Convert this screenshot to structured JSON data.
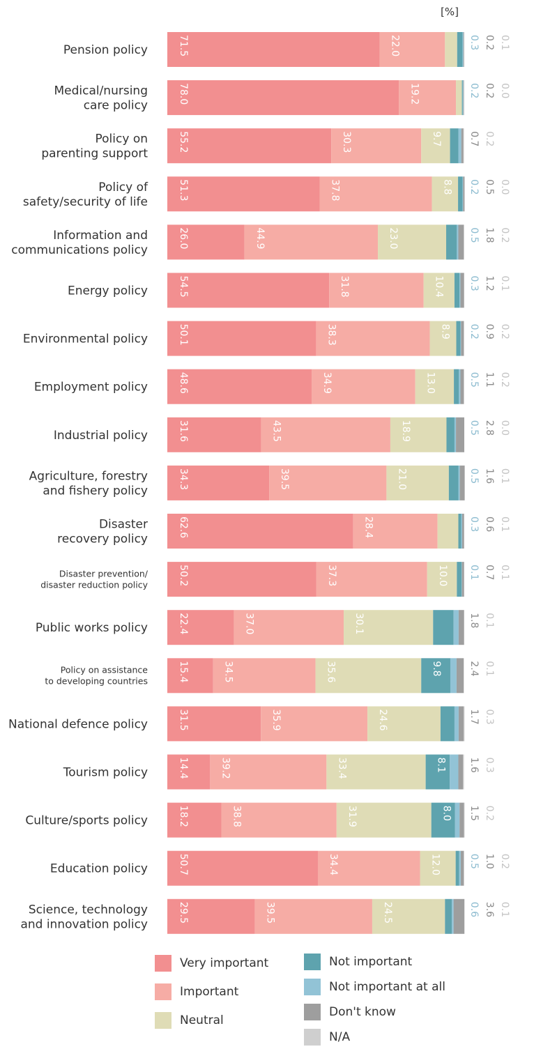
{
  "unit_label": "[%]",
  "colors": {
    "very_important": "#f28f90",
    "important": "#f6aca5",
    "neutral": "#dfdcb6",
    "not_important": "#5ea3ae",
    "not_important_at_all": "#92c3d6",
    "dont_know": "#9e9e9e",
    "na": "#cfcfcf"
  },
  "chart_data": {
    "type": "bar",
    "orientation": "horizontal",
    "stacked": true,
    "unit": "[%]",
    "categories": [
      [
        "Pension policy"
      ],
      [
        "Medical/nursing",
        "care policy"
      ],
      [
        "Policy on",
        "parenting support"
      ],
      [
        "Policy of",
        "safety/security of life"
      ],
      [
        "Information and",
        "communications policy"
      ],
      [
        "Energy policy"
      ],
      [
        "Environmental policy"
      ],
      [
        "Employment policy"
      ],
      [
        "Industrial policy"
      ],
      [
        "Agriculture, forestry",
        "and fishery policy"
      ],
      [
        "Disaster",
        "recovery policy"
      ],
      [
        "Disaster prevention/",
        "disaster reduction policy"
      ],
      [
        "Public works policy"
      ],
      [
        "Policy on assistance",
        "to developing countries"
      ],
      [
        "National defence policy"
      ],
      [
        "Tourism policy"
      ],
      [
        "Culture/sports policy"
      ],
      [
        "Education policy"
      ],
      [
        "Science, technology",
        "and innovation policy"
      ]
    ],
    "series": [
      {
        "name": "Very important",
        "color_key": "very_important",
        "values": [
          71.5,
          78.0,
          55.2,
          51.3,
          26.0,
          54.5,
          50.1,
          48.6,
          31.6,
          34.3,
          62.6,
          50.2,
          22.4,
          15.4,
          31.5,
          14.4,
          18.2,
          50.7,
          29.5
        ]
      },
      {
        "name": "Important",
        "color_key": "important",
        "values": [
          22.0,
          19.2,
          30.3,
          37.8,
          44.9,
          31.8,
          38.3,
          34.9,
          43.5,
          39.5,
          28.4,
          37.3,
          37.0,
          34.5,
          35.9,
          39.2,
          38.8,
          34.4,
          39.5
        ]
      },
      {
        "name": "Neutral",
        "color_key": "neutral",
        "values": [
          4.1,
          2.0,
          9.7,
          8.8,
          23.0,
          10.4,
          8.9,
          13.0,
          18.9,
          21.0,
          7.0,
          10.0,
          30.1,
          35.6,
          24.6,
          33.4,
          31.9,
          12.0,
          24.5
        ]
      },
      {
        "name": "Not important",
        "color_key": "not_important",
        "values": [
          1.8,
          0.3,
          2.8,
          1.5,
          3.6,
          1.7,
          1.4,
          1.7,
          2.7,
          3.2,
          1.0,
          1.6,
          6.9,
          9.8,
          4.7,
          8.1,
          8.0,
          1.2,
          2.3
        ]
      },
      {
        "name": "Not important at all",
        "color_key": "not_important_at_all",
        "values": [
          0.3,
          0.2,
          1.0,
          0.2,
          0.5,
          0.3,
          0.2,
          0.5,
          0.5,
          0.5,
          0.3,
          0.1,
          1.7,
          2.1,
          1.4,
          2.9,
          1.5,
          0.5,
          0.6
        ]
      },
      {
        "name": "Don't know",
        "color_key": "dont_know",
        "values": [
          0.2,
          0.2,
          0.7,
          0.5,
          1.8,
          1.2,
          0.9,
          1.1,
          2.8,
          1.6,
          0.6,
          0.7,
          1.8,
          2.4,
          1.7,
          1.6,
          1.5,
          1.0,
          3.6
        ]
      },
      {
        "name": "N/A",
        "color_key": "na",
        "values": [
          0.1,
          0.0,
          0.2,
          0.0,
          0.2,
          0.1,
          0.2,
          0.2,
          0.0,
          0.1,
          0.1,
          0.1,
          0.1,
          0.1,
          0.3,
          0.3,
          0.2,
          0.2,
          0.1
        ]
      }
    ],
    "xlim": [
      0,
      100
    ]
  },
  "legend": [
    {
      "label": "Very important",
      "color_key": "very_important"
    },
    {
      "label": "Important",
      "color_key": "important"
    },
    {
      "label": "Neutral",
      "color_key": "neutral"
    },
    {
      "label": "Not important",
      "color_key": "not_important"
    },
    {
      "label": "Not important at all",
      "color_key": "not_important_at_all"
    },
    {
      "label": "Don't know",
      "color_key": "dont_know"
    },
    {
      "label": "N/A",
      "color_key": "na"
    }
  ]
}
